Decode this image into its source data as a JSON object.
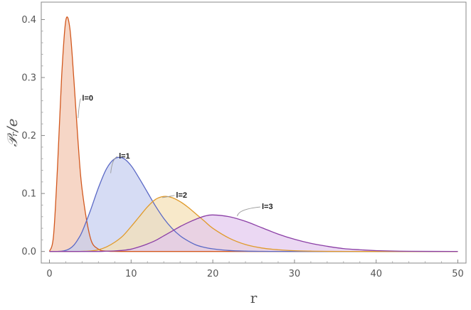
{
  "chart_data": {
    "type": "area",
    "title": "",
    "xlabel": "r",
    "ylabel": "𝒫ᵣ/e",
    "xlim": [
      -1,
      51
    ],
    "ylim": [
      -0.02,
      0.43
    ],
    "xticks": [
      0,
      10,
      20,
      30,
      40,
      50
    ],
    "yticks": [
      0.0,
      0.1,
      0.2,
      0.3,
      0.4
    ],
    "xtick_labels": [
      "0",
      "10",
      "20",
      "30",
      "40",
      "50"
    ],
    "ytick_labels": [
      "0.0",
      "0.1",
      "0.2",
      "0.3",
      "0.4"
    ],
    "frame": true,
    "grid": false,
    "legend": "none",
    "x": [
      0,
      0.5,
      1,
      1.5,
      2,
      2.5,
      3,
      3.5,
      4,
      5,
      6,
      7,
      8,
      9,
      10,
      11,
      12,
      13,
      14,
      15,
      16,
      17,
      18,
      19,
      20,
      22,
      24,
      26,
      28,
      30,
      32,
      34,
      36,
      38,
      40,
      44,
      50
    ],
    "series": [
      {
        "name": "",
        "color": "#d2581e",
        "fill": "#f2c4ae",
        "values": [
          0,
          0.027,
          0.149,
          0.303,
          0.398,
          0.385,
          0.295,
          0.19,
          0.107,
          0.024,
          0.004,
          0.0006,
          8e-05,
          1e-05,
          0,
          0,
          0,
          0,
          0,
          0,
          0,
          0,
          0,
          0,
          0,
          0,
          0,
          0,
          0,
          0,
          0,
          0,
          0,
          0,
          0,
          0,
          0
        ]
      },
      {
        "name": "",
        "color": "#5b69c6",
        "fill": "#c5cdef",
        "values": [
          0,
          0,
          0.0001,
          0.0005,
          0.0019,
          0.0051,
          0.0111,
          0.021,
          0.034,
          0.07,
          0.11,
          0.143,
          0.16,
          0.161,
          0.148,
          0.126,
          0.102,
          0.078,
          0.057,
          0.04,
          0.027,
          0.018,
          0.011,
          0.007,
          0.0045,
          0.0017,
          0.0006,
          0.0002,
          6e-05,
          2e-05,
          0,
          0,
          0,
          0,
          0,
          0,
          0
        ]
      },
      {
        "name": "",
        "color": "#e09a2a",
        "fill": "#f5e0b4",
        "values": [
          0,
          0,
          0,
          0,
          0,
          0,
          0,
          0,
          0.0002,
          0.0008,
          0.003,
          0.008,
          0.016,
          0.027,
          0.043,
          0.06,
          0.077,
          0.09,
          0.095,
          0.093,
          0.086,
          0.076,
          0.064,
          0.052,
          0.04,
          0.023,
          0.012,
          0.006,
          0.003,
          0.0013,
          0.0006,
          0.0002,
          0.0001,
          0,
          0,
          0,
          0
        ]
      },
      {
        "name": "",
        "color": "#8b3fa6",
        "fill": "#e3c8ee",
        "values": [
          0,
          0,
          0,
          0,
          0,
          0,
          0,
          0,
          0,
          0,
          0,
          0.0005,
          0.001,
          0.002,
          0.004,
          0.008,
          0.013,
          0.019,
          0.027,
          0.035,
          0.043,
          0.05,
          0.056,
          0.061,
          0.063,
          0.06,
          0.052,
          0.041,
          0.03,
          0.021,
          0.014,
          0.009,
          0.005,
          0.003,
          0.0015,
          0.0004,
          5e-05
        ]
      }
    ],
    "annotations": [
      {
        "text": "l=0",
        "x": 4.0,
        "y": 0.265,
        "point_x": 3.5,
        "point_y": 0.23
      },
      {
        "text": "l=1",
        "x": 8.5,
        "y": 0.165,
        "point_x": 7.5,
        "point_y": 0.135
      },
      {
        "text": "l=2",
        "x": 15.5,
        "y": 0.098,
        "point_x": 13.8,
        "point_y": 0.093
      },
      {
        "text": "l=3",
        "x": 26.0,
        "y": 0.078,
        "point_x": 23.0,
        "point_y": 0.061
      }
    ]
  }
}
